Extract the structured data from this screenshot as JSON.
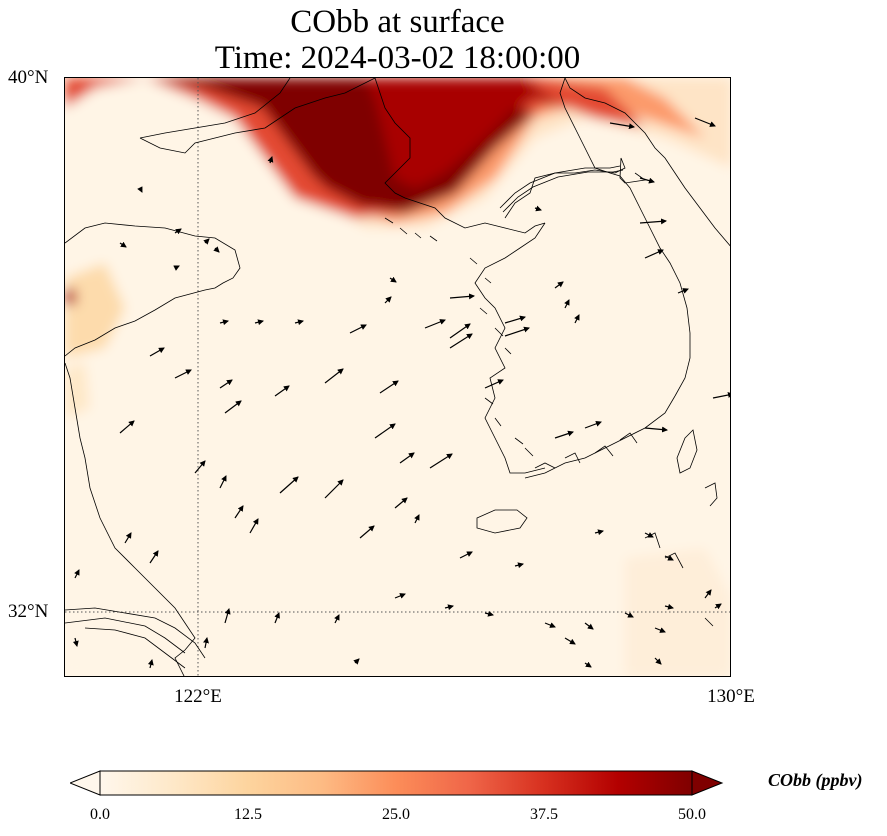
{
  "title": {
    "line1": "CObb at surface",
    "line2": "Time: 2024-03-02 18:00:00"
  },
  "axes": {
    "lat_labels": [
      "40°N",
      "32°N"
    ],
    "lon_labels": [
      "122°E",
      "130°E"
    ],
    "lat_values": [
      40,
      32
    ],
    "lon_values": [
      122,
      130
    ],
    "lon_range": [
      120,
      130
    ],
    "lat_range": [
      31,
      40
    ],
    "gridlines": "dotted, only at labeled ticks"
  },
  "colorbar": {
    "label": "CObb (ppbv)",
    "ticks": [
      "0.0",
      "12.5",
      "25.0",
      "37.5",
      "50.0"
    ],
    "tick_values": [
      0,
      12.5,
      25,
      37.5,
      50
    ],
    "vmin": 0,
    "vmax": 50,
    "extend": "both",
    "colormap": "OrRd",
    "colors": [
      "#fff7ec",
      "#fee8c8",
      "#fdd49e",
      "#fdbb84",
      "#fc8d59",
      "#ef6548",
      "#d7301f",
      "#b30000",
      "#7f0000"
    ]
  },
  "map": {
    "type": "field-with-wind-vectors",
    "region": "Yellow Sea / Korean Peninsula",
    "plume_description": "high CObb (>50 ppbv) plume along northern edge near 38-40°N, moderate values near 120°E 36.5°N, low elsewhere",
    "coastline_color": "#000000",
    "vector_color": "#000000"
  }
}
